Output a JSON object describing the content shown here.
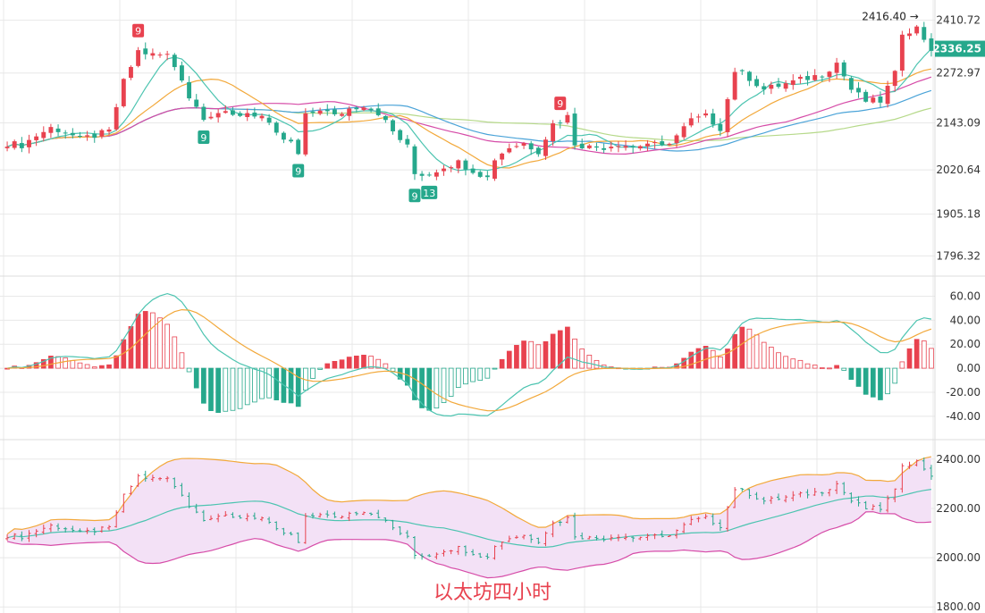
{
  "title": "以太坊四小时",
  "colors": {
    "up": "#e8424f",
    "down": "#26a88c",
    "ma_fast": "#4cc4b0",
    "ma_mid": "#f2a83a",
    "ma_slow": "#d64ca8",
    "ma_slowest": "#4aa3d8",
    "ma_extra": "#b6d98a",
    "dif": "#4cc4b0",
    "dea": "#f2a83a",
    "boll_mid": "#4cc4b0",
    "boll_upper": "#f2a83a",
    "boll_lower": "#d64ca8",
    "boll_fill": "#f3e1f6",
    "price_tag": "#26a88c",
    "grid": "#e8e8e8"
  },
  "chart_data": [
    {
      "type": "candlestick",
      "panel": "price",
      "ylim": [
        1760,
        2440
      ],
      "ticks": [
        "2410.72",
        "2272.97",
        "2143.09",
        "2020.64",
        "1905.18",
        "1796.32"
      ],
      "current_price": "2336.25",
      "high_marker": "2416.40",
      "grid": true,
      "td_markers": [
        {
          "index": 18,
          "label": "9",
          "kind": "up"
        },
        {
          "index": 27,
          "label": "9",
          "kind": "down"
        },
        {
          "index": 40,
          "label": "9",
          "kind": "down"
        },
        {
          "index": 56,
          "label": "9",
          "kind": "down"
        },
        {
          "index": 58,
          "label": "13",
          "kind": "down"
        },
        {
          "index": 76,
          "label": "9",
          "kind": "up"
        }
      ],
      "series_points": [
        {
          "i": 0,
          "c": 2090
        },
        {
          "i": 2,
          "c": 2085
        },
        {
          "i": 4,
          "c": 2110
        },
        {
          "i": 6,
          "c": 2130
        },
        {
          "i": 8,
          "c": 2120
        },
        {
          "i": 10,
          "c": 2100
        },
        {
          "i": 12,
          "c": 2110
        },
        {
          "i": 14,
          "c": 2120
        },
        {
          "i": 16,
          "c": 2250
        },
        {
          "i": 18,
          "c": 2330
        },
        {
          "i": 20,
          "c": 2320
        },
        {
          "i": 22,
          "c": 2320
        },
        {
          "i": 24,
          "c": 2260
        },
        {
          "i": 25,
          "c": 2210
        },
        {
          "i": 27,
          "c": 2160
        },
        {
          "i": 29,
          "c": 2170
        },
        {
          "i": 31,
          "c": 2160
        },
        {
          "i": 33,
          "c": 2170
        },
        {
          "i": 35,
          "c": 2160
        },
        {
          "i": 37,
          "c": 2110
        },
        {
          "i": 39,
          "c": 2090
        },
        {
          "i": 40,
          "c": 2060
        },
        {
          "i": 41,
          "c": 2160
        },
        {
          "i": 43,
          "c": 2180
        },
        {
          "i": 45,
          "c": 2160
        },
        {
          "i": 47,
          "c": 2180
        },
        {
          "i": 49,
          "c": 2190
        },
        {
          "i": 51,
          "c": 2170
        },
        {
          "i": 53,
          "c": 2120
        },
        {
          "i": 55,
          "c": 2080
        },
        {
          "i": 56,
          "c": 2010
        },
        {
          "i": 58,
          "c": 2010
        },
        {
          "i": 60,
          "c": 2030
        },
        {
          "i": 62,
          "c": 2040
        },
        {
          "i": 64,
          "c": 2020
        },
        {
          "i": 66,
          "c": 2000
        },
        {
          "i": 67,
          "c": 2050
        },
        {
          "i": 69,
          "c": 2080
        },
        {
          "i": 71,
          "c": 2090
        },
        {
          "i": 73,
          "c": 2070
        },
        {
          "i": 75,
          "c": 2140
        },
        {
          "i": 77,
          "c": 2160
        },
        {
          "i": 78,
          "c": 2090
        },
        {
          "i": 80,
          "c": 2080
        },
        {
          "i": 82,
          "c": 2080
        },
        {
          "i": 84,
          "c": 2090
        },
        {
          "i": 86,
          "c": 2080
        },
        {
          "i": 88,
          "c": 2090
        },
        {
          "i": 90,
          "c": 2080
        },
        {
          "i": 92,
          "c": 2110
        },
        {
          "i": 94,
          "c": 2150
        },
        {
          "i": 96,
          "c": 2160
        },
        {
          "i": 98,
          "c": 2130
        },
        {
          "i": 100,
          "c": 2280
        },
        {
          "i": 102,
          "c": 2260
        },
        {
          "i": 104,
          "c": 2230
        },
        {
          "i": 106,
          "c": 2240
        },
        {
          "i": 108,
          "c": 2250
        },
        {
          "i": 110,
          "c": 2260
        },
        {
          "i": 112,
          "c": 2270
        },
        {
          "i": 114,
          "c": 2300
        },
        {
          "i": 116,
          "c": 2230
        },
        {
          "i": 118,
          "c": 2200
        },
        {
          "i": 120,
          "c": 2200
        },
        {
          "i": 122,
          "c": 2270
        },
        {
          "i": 123,
          "c": 2380
        },
        {
          "i": 125,
          "c": 2390
        },
        {
          "i": 127,
          "c": 2336
        }
      ]
    },
    {
      "type": "bar",
      "panel": "macd",
      "ylim": [
        -55,
        70
      ],
      "ticks": [
        "60.00",
        "40.00",
        "20.00",
        "0.00",
        "-20.00",
        "-40.00"
      ],
      "grid": true
    },
    {
      "type": "area",
      "panel": "bollinger",
      "ylim": [
        1790,
        2450
      ],
      "ticks": [
        "2400.00",
        "2200.00",
        "2000.00",
        "1800.00"
      ],
      "grid": true
    }
  ]
}
